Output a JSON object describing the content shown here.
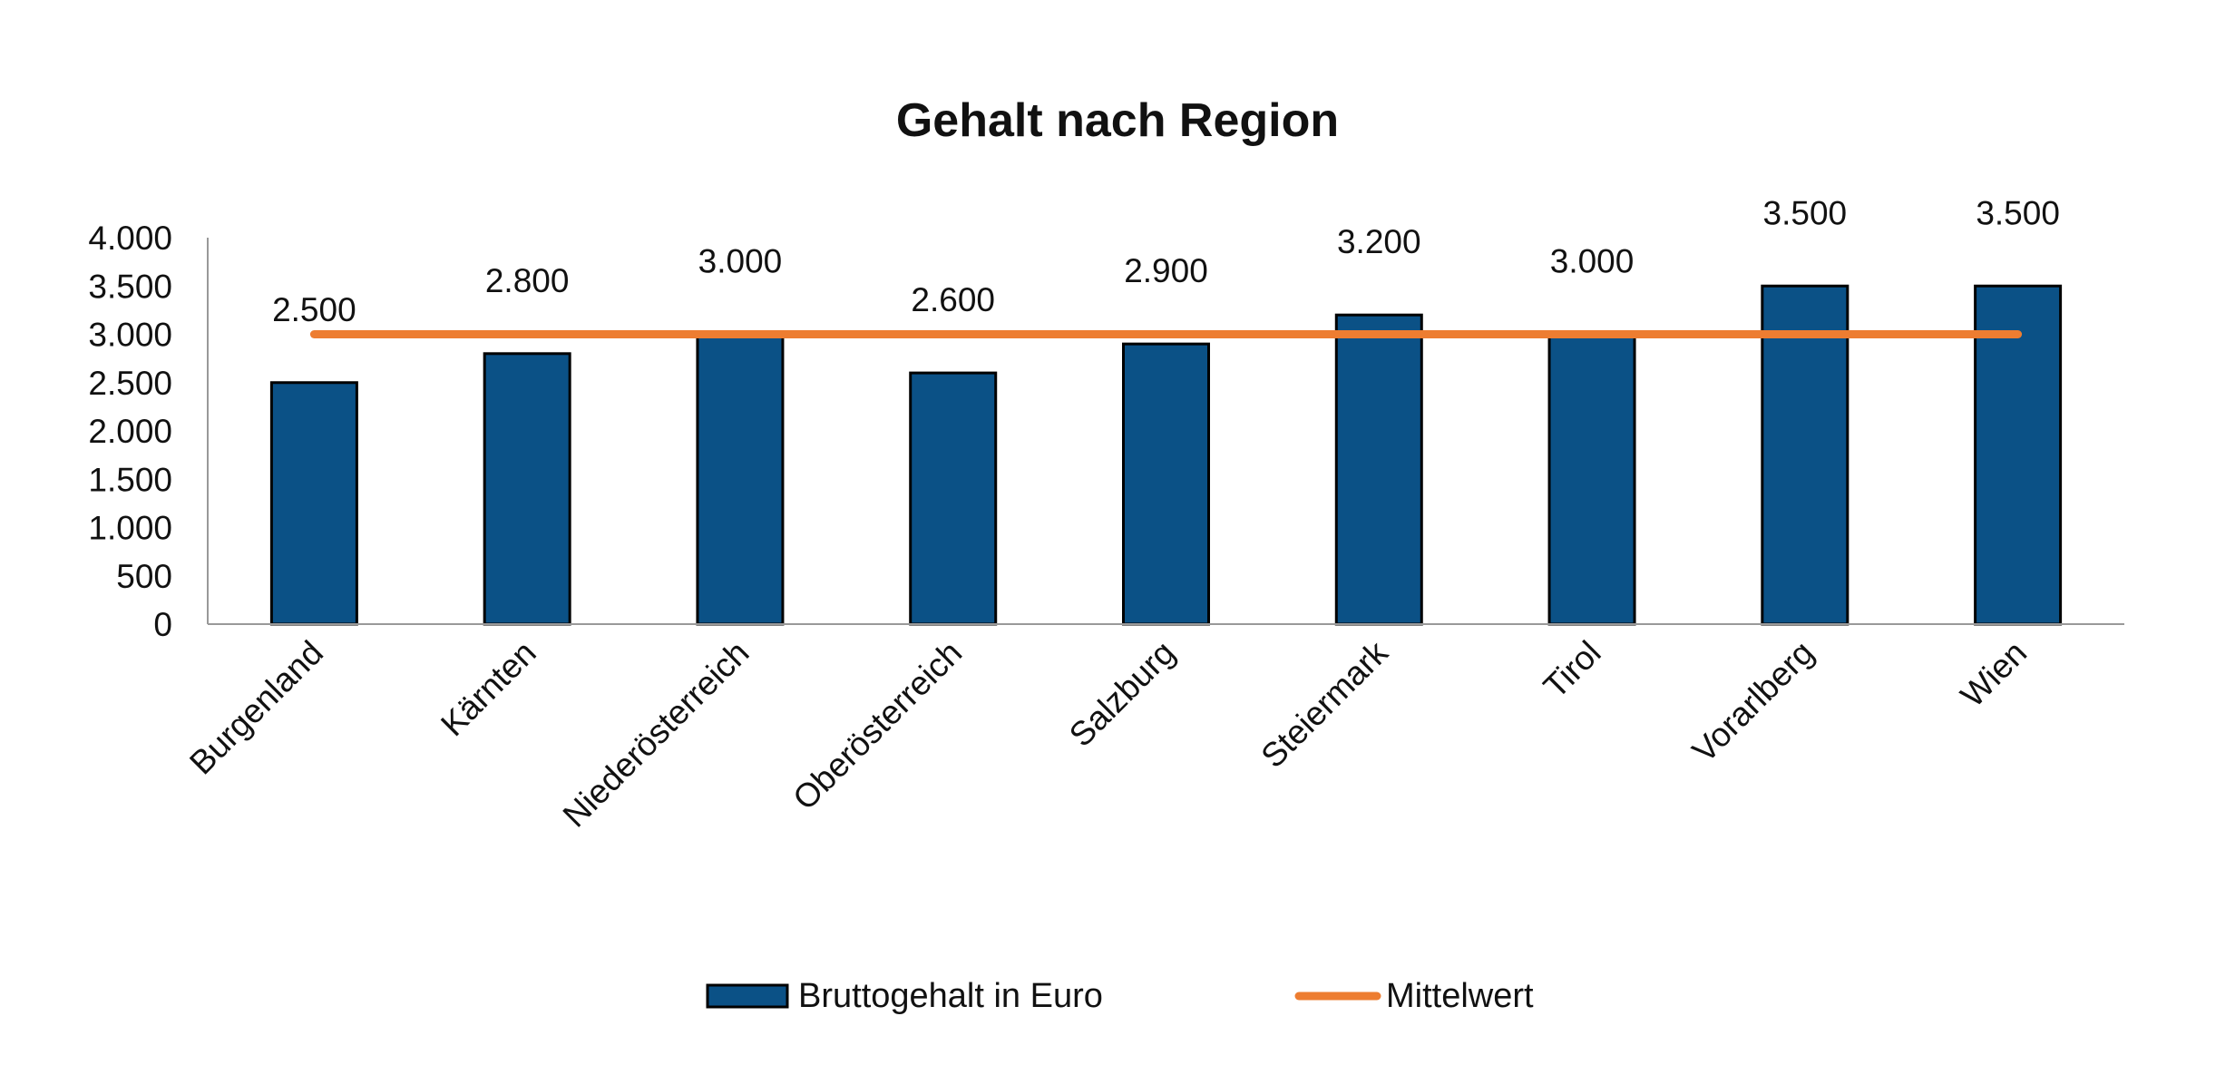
{
  "chart_data": {
    "type": "bar",
    "title": "Gehalt nach Region",
    "xlabel": "",
    "ylabel": "",
    "ylim": [
      0,
      4000
    ],
    "yticks": [
      0,
      500,
      1000,
      1500,
      2000,
      2500,
      3000,
      3500,
      4000
    ],
    "ytick_labels": [
      "0",
      "500",
      "1.000",
      "1.500",
      "2.000",
      "2.500",
      "3.000",
      "3.500",
      "4.000"
    ],
    "categories": [
      "Burgenland",
      "Kärnten",
      "Niederösterreich",
      "Oberösterreich",
      "Salzburg",
      "Steiermark",
      "Tirol",
      "Vorarlberg",
      "Wien"
    ],
    "series": [
      {
        "name": "Bruttogehalt in Euro",
        "type": "bar",
        "color": "#0b5186",
        "values": [
          2500,
          2800,
          3000,
          2600,
          2900,
          3200,
          3000,
          3500,
          3500
        ],
        "data_labels": [
          "2.500",
          "2.800",
          "3.000",
          "2.600",
          "2.900",
          "3.200",
          "3.000",
          "3.500",
          "3.500"
        ]
      },
      {
        "name": "Mittelwert",
        "type": "line",
        "color": "#ed7d31",
        "values": [
          3000,
          3000,
          3000,
          3000,
          3000,
          3000,
          3000,
          3000,
          3000
        ]
      }
    ],
    "grid": false,
    "legend": "bottom"
  }
}
